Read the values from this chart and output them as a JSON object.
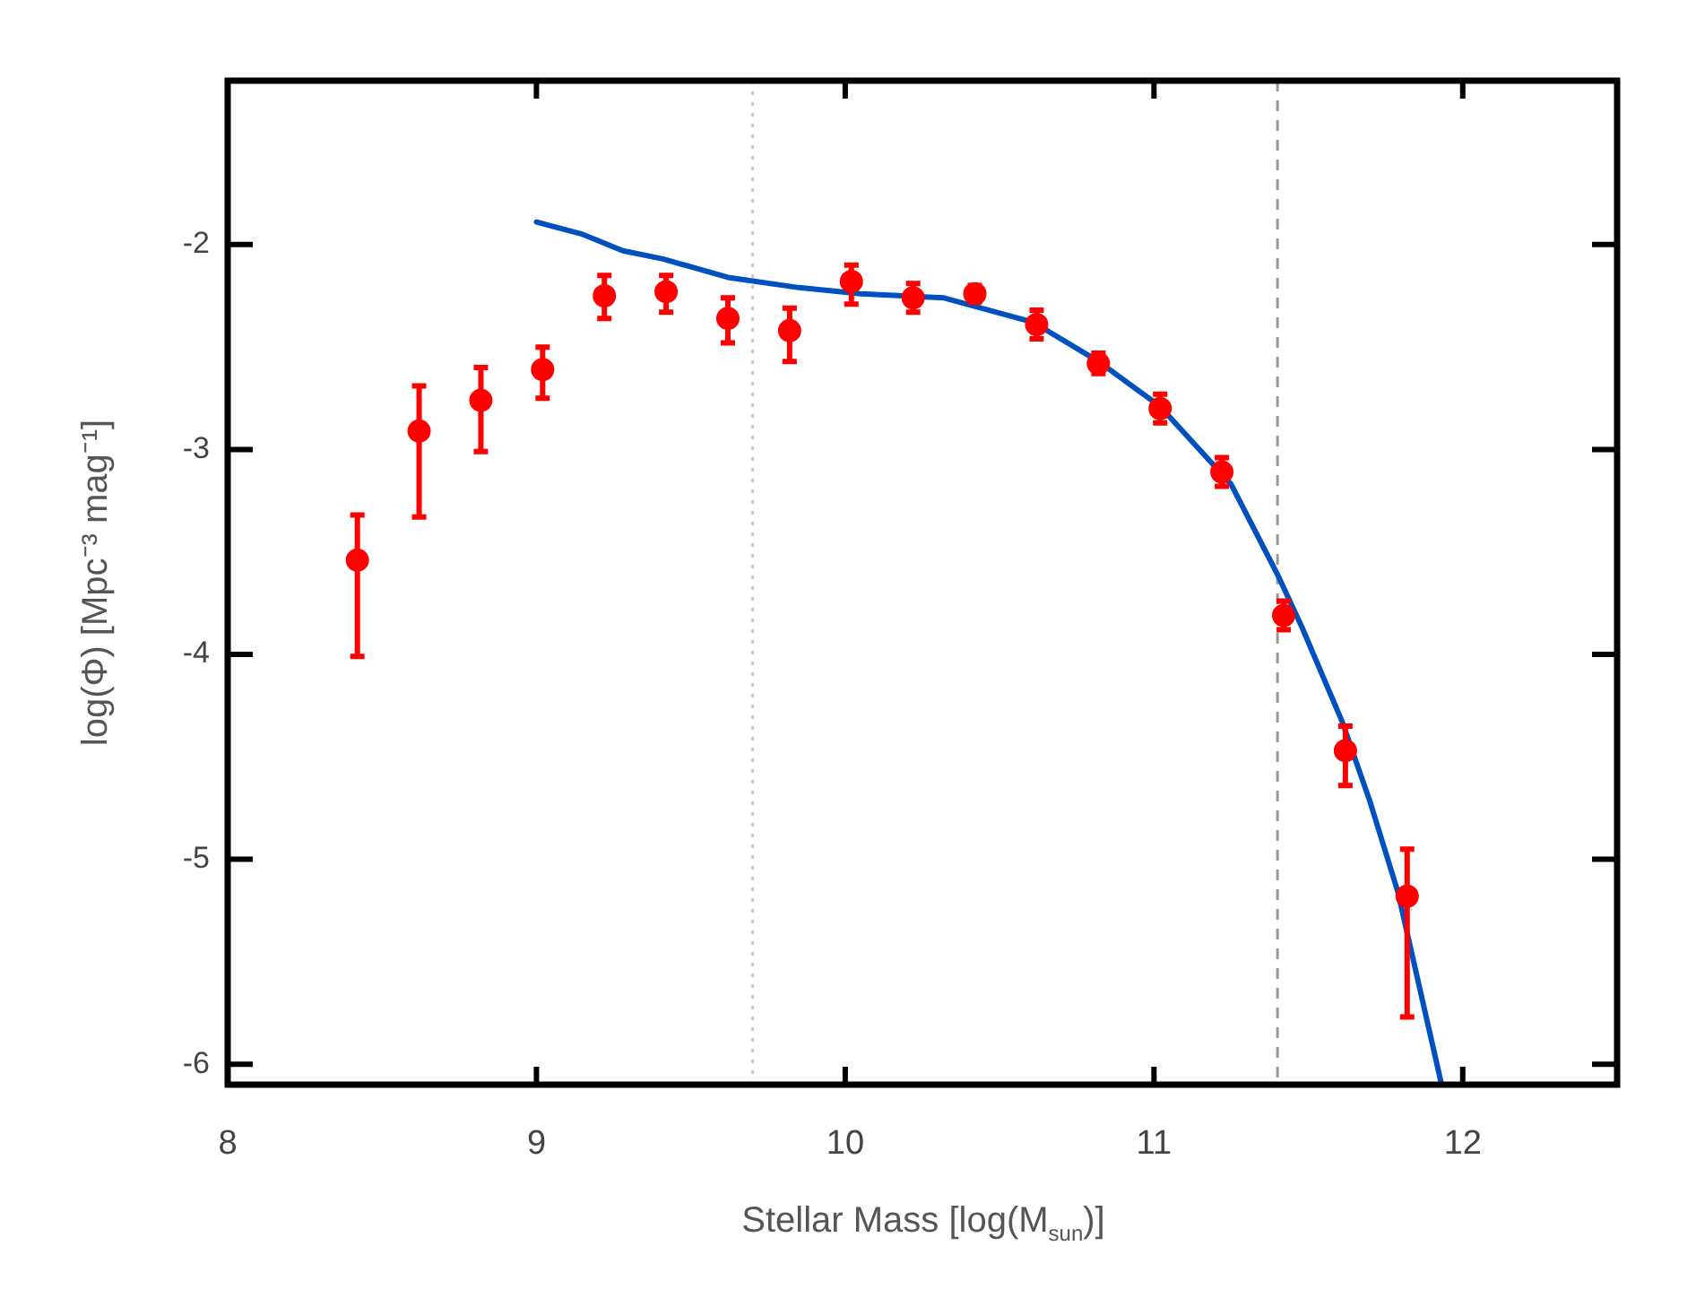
{
  "chart_data": {
    "type": "scatter",
    "xlabel": "Stellar Mass [log(M$_{sun}$)]",
    "ylabel": "log(Φ) [Mpc⁻³ mag⁻¹]",
    "xlim": [
      8,
      12.5
    ],
    "xticks": [
      8,
      9,
      10,
      11,
      12
    ],
    "ylim": [
      -6.1,
      -1.2
    ],
    "yticks": [
      -6,
      -5,
      -4,
      -3,
      -2
    ],
    "marker": "circle",
    "series": [
      {
        "color": "#ff0000",
        "x": [
          8.42,
          8.62,
          8.82,
          9.02,
          9.22,
          9.42,
          9.62,
          9.82,
          10.02,
          10.22,
          10.42,
          10.62,
          10.82,
          11.02,
          11.22,
          11.42,
          11.62,
          11.82
        ],
        "values": [
          -3.54,
          -2.91,
          -2.76,
          -2.61,
          -2.25,
          -2.23,
          -2.36,
          -2.42,
          -2.18,
          -2.26,
          -2.24,
          -2.39,
          -2.58,
          -2.8,
          -3.11,
          -3.81,
          -4.47,
          -5.18
        ],
        "errors": [
          [
            -4.01,
            -3.32
          ],
          [
            -3.33,
            -2.69
          ],
          [
            -3.01,
            -2.6
          ],
          [
            -2.75,
            -2.5
          ],
          [
            -2.36,
            -2.15
          ],
          [
            -2.33,
            -2.15
          ],
          [
            -2.48,
            -2.26
          ],
          [
            -2.57,
            -2.31
          ],
          [
            -2.29,
            -2.1
          ],
          [
            -2.33,
            -2.19
          ],
          [
            -2.28,
            -2.2
          ],
          [
            -2.46,
            -2.32
          ],
          [
            -2.63,
            -2.53
          ],
          [
            -2.87,
            -2.73
          ],
          [
            -3.18,
            -3.04
          ],
          [
            -3.88,
            -3.74
          ],
          [
            -4.64,
            -4.35
          ],
          [
            -5.77,
            -4.95
          ]
        ]
      },
      {
        "type": "line",
        "color": "#0050c0",
        "marker": "none",
        "line_style": "solid",
        "x": [
          9.0,
          9.15,
          9.28,
          9.41,
          9.62,
          9.85,
          10.05,
          10.32,
          10.61,
          10.82,
          11.02,
          11.25,
          11.4,
          11.48,
          11.61,
          11.7,
          11.79,
          11.93
        ],
        "values": [
          -1.89,
          -1.95,
          -2.03,
          -2.07,
          -2.16,
          -2.21,
          -2.24,
          -2.26,
          -2.38,
          -2.57,
          -2.79,
          -3.17,
          -3.61,
          -3.87,
          -4.33,
          -4.72,
          -5.16,
          -6.09
        ]
      }
    ],
    "ref_lines": [
      {
        "axis": "x",
        "value": 9.7,
        "color": "#cccccc",
        "line_style": "dotted"
      },
      {
        "axis": "x",
        "value": 11.4,
        "color": "#999999",
        "line_style": "dashed"
      }
    ]
  }
}
